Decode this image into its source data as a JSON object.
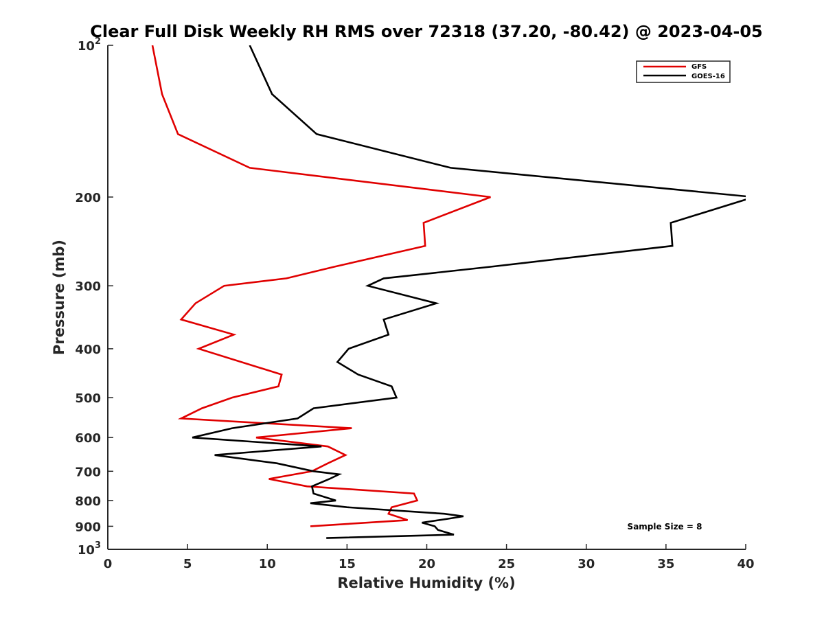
{
  "chart_data": {
    "type": "line",
    "title": "Clear Full Disk Weekly RH RMS over 72318 (37.20, -80.42) @ 2023-04-05",
    "xlabel": "Relative Humidity (%)",
    "ylabel": "Pressure (mb)",
    "xlim": [
      0,
      40
    ],
    "ylim": [
      100,
      1000
    ],
    "y_scale": "log",
    "y_reversed": true,
    "x_ticks": [
      "0",
      "5",
      "10",
      "15",
      "20",
      "25",
      "30",
      "35",
      "40"
    ],
    "y_ticks": [
      {
        "value": 100,
        "label": "10",
        "sup": "2"
      },
      {
        "value": 200,
        "label": "200"
      },
      {
        "value": 300,
        "label": "300"
      },
      {
        "value": 400,
        "label": "400"
      },
      {
        "value": 500,
        "label": "500"
      },
      {
        "value": 600,
        "label": "600"
      },
      {
        "value": 700,
        "label": "700"
      },
      {
        "value": 800,
        "label": "800"
      },
      {
        "value": 900,
        "label": "900"
      },
      {
        "value": 1000,
        "label": "10",
        "sup": "3"
      }
    ],
    "legend_position": "top-right",
    "annotation": "Sample Size = 8",
    "series": [
      {
        "name": "GFS",
        "color": "#e00000",
        "points": [
          [
            2.8,
            100
          ],
          [
            3.4,
            125
          ],
          [
            4.4,
            150
          ],
          [
            8.9,
            175
          ],
          [
            24.0,
            200
          ],
          [
            19.8,
            225
          ],
          [
            19.9,
            250
          ],
          [
            14.2,
            275
          ],
          [
            11.2,
            290
          ],
          [
            7.3,
            300
          ],
          [
            5.5,
            325
          ],
          [
            4.6,
            350
          ],
          [
            7.9,
            375
          ],
          [
            5.7,
            400
          ],
          [
            10.9,
            450
          ],
          [
            10.7,
            475
          ],
          [
            7.8,
            500
          ],
          [
            5.9,
            525
          ],
          [
            4.6,
            550
          ],
          [
            15.3,
            575
          ],
          [
            9.3,
            600
          ],
          [
            13.8,
            625
          ],
          [
            14.9,
            650
          ],
          [
            13.8,
            675
          ],
          [
            12.8,
            700
          ],
          [
            10.1,
            725
          ],
          [
            12.5,
            750
          ],
          [
            19.2,
            775
          ],
          [
            19.4,
            800
          ],
          [
            17.8,
            825
          ],
          [
            17.6,
            850
          ],
          [
            18.8,
            875
          ],
          [
            12.7,
            900
          ]
        ]
      },
      {
        "name": "GOES-16",
        "color": "#000000",
        "points": [
          [
            8.9,
            100
          ],
          [
            10.3,
            125
          ],
          [
            13.1,
            150
          ],
          [
            21.5,
            175
          ],
          [
            40.5,
            200
          ],
          [
            35.3,
            225
          ],
          [
            35.4,
            250
          ],
          [
            24.0,
            275
          ],
          [
            17.3,
            290
          ],
          [
            16.3,
            300
          ],
          [
            20.6,
            325
          ],
          [
            17.3,
            350
          ],
          [
            17.6,
            375
          ],
          [
            15.1,
            400
          ],
          [
            14.4,
            425
          ],
          [
            15.7,
            450
          ],
          [
            17.8,
            475
          ],
          [
            18.1,
            500
          ],
          [
            12.9,
            525
          ],
          [
            11.9,
            550
          ],
          [
            7.8,
            575
          ],
          [
            5.3,
            600
          ],
          [
            13.4,
            625
          ],
          [
            6.7,
            650
          ],
          [
            10.6,
            675
          ],
          [
            12.9,
            700
          ],
          [
            14.5,
            710
          ],
          [
            13.9,
            725
          ],
          [
            12.8,
            750
          ],
          [
            12.9,
            775
          ],
          [
            14.3,
            800
          ],
          [
            12.7,
            810
          ],
          [
            15.0,
            825
          ],
          [
            21.1,
            850
          ],
          [
            22.3,
            860
          ],
          [
            21.3,
            870
          ],
          [
            19.7,
            885
          ],
          [
            20.5,
            900
          ],
          [
            20.7,
            915
          ],
          [
            21.7,
            935
          ],
          [
            13.7,
            950
          ]
        ]
      }
    ]
  }
}
